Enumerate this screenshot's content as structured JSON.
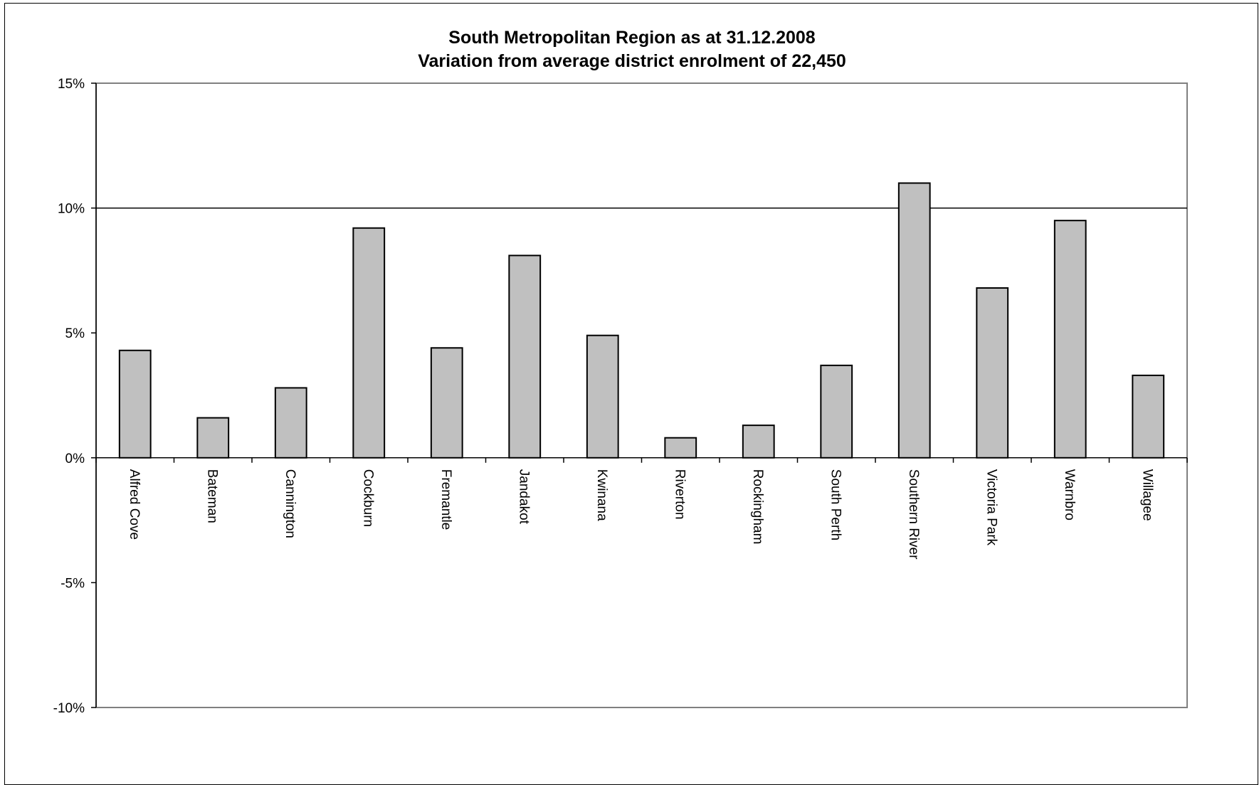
{
  "chart_data": {
    "type": "bar",
    "title": "South Metropolitan Region as at 31.12.2008",
    "subtitle": "Variation from average district enrolment of 22,450",
    "xlabel": "",
    "ylabel": "",
    "ylim": [
      -10,
      15
    ],
    "y_ticks": [
      "15%",
      "10%",
      "5%",
      "0%",
      "-5%",
      "-10%"
    ],
    "y_tick_values": [
      15,
      10,
      5,
      0,
      -5,
      -10
    ],
    "reference_line": 10,
    "categories": [
      "Alfred Cove",
      "Bateman",
      "Cannington",
      "Cockburn",
      "Fremantle",
      "Jandakot",
      "Kwinana",
      "Riverton",
      "Rockingham",
      "South Perth",
      "Southern River",
      "Victoria Park",
      "Warnbro",
      "Willagee"
    ],
    "values": [
      4.3,
      1.6,
      2.8,
      9.2,
      4.4,
      8.1,
      4.9,
      0.8,
      1.3,
      3.7,
      11.0,
      6.8,
      9.5,
      3.3
    ],
    "bar_color": "#c0c0c0",
    "grid": false,
    "legend": "none"
  }
}
